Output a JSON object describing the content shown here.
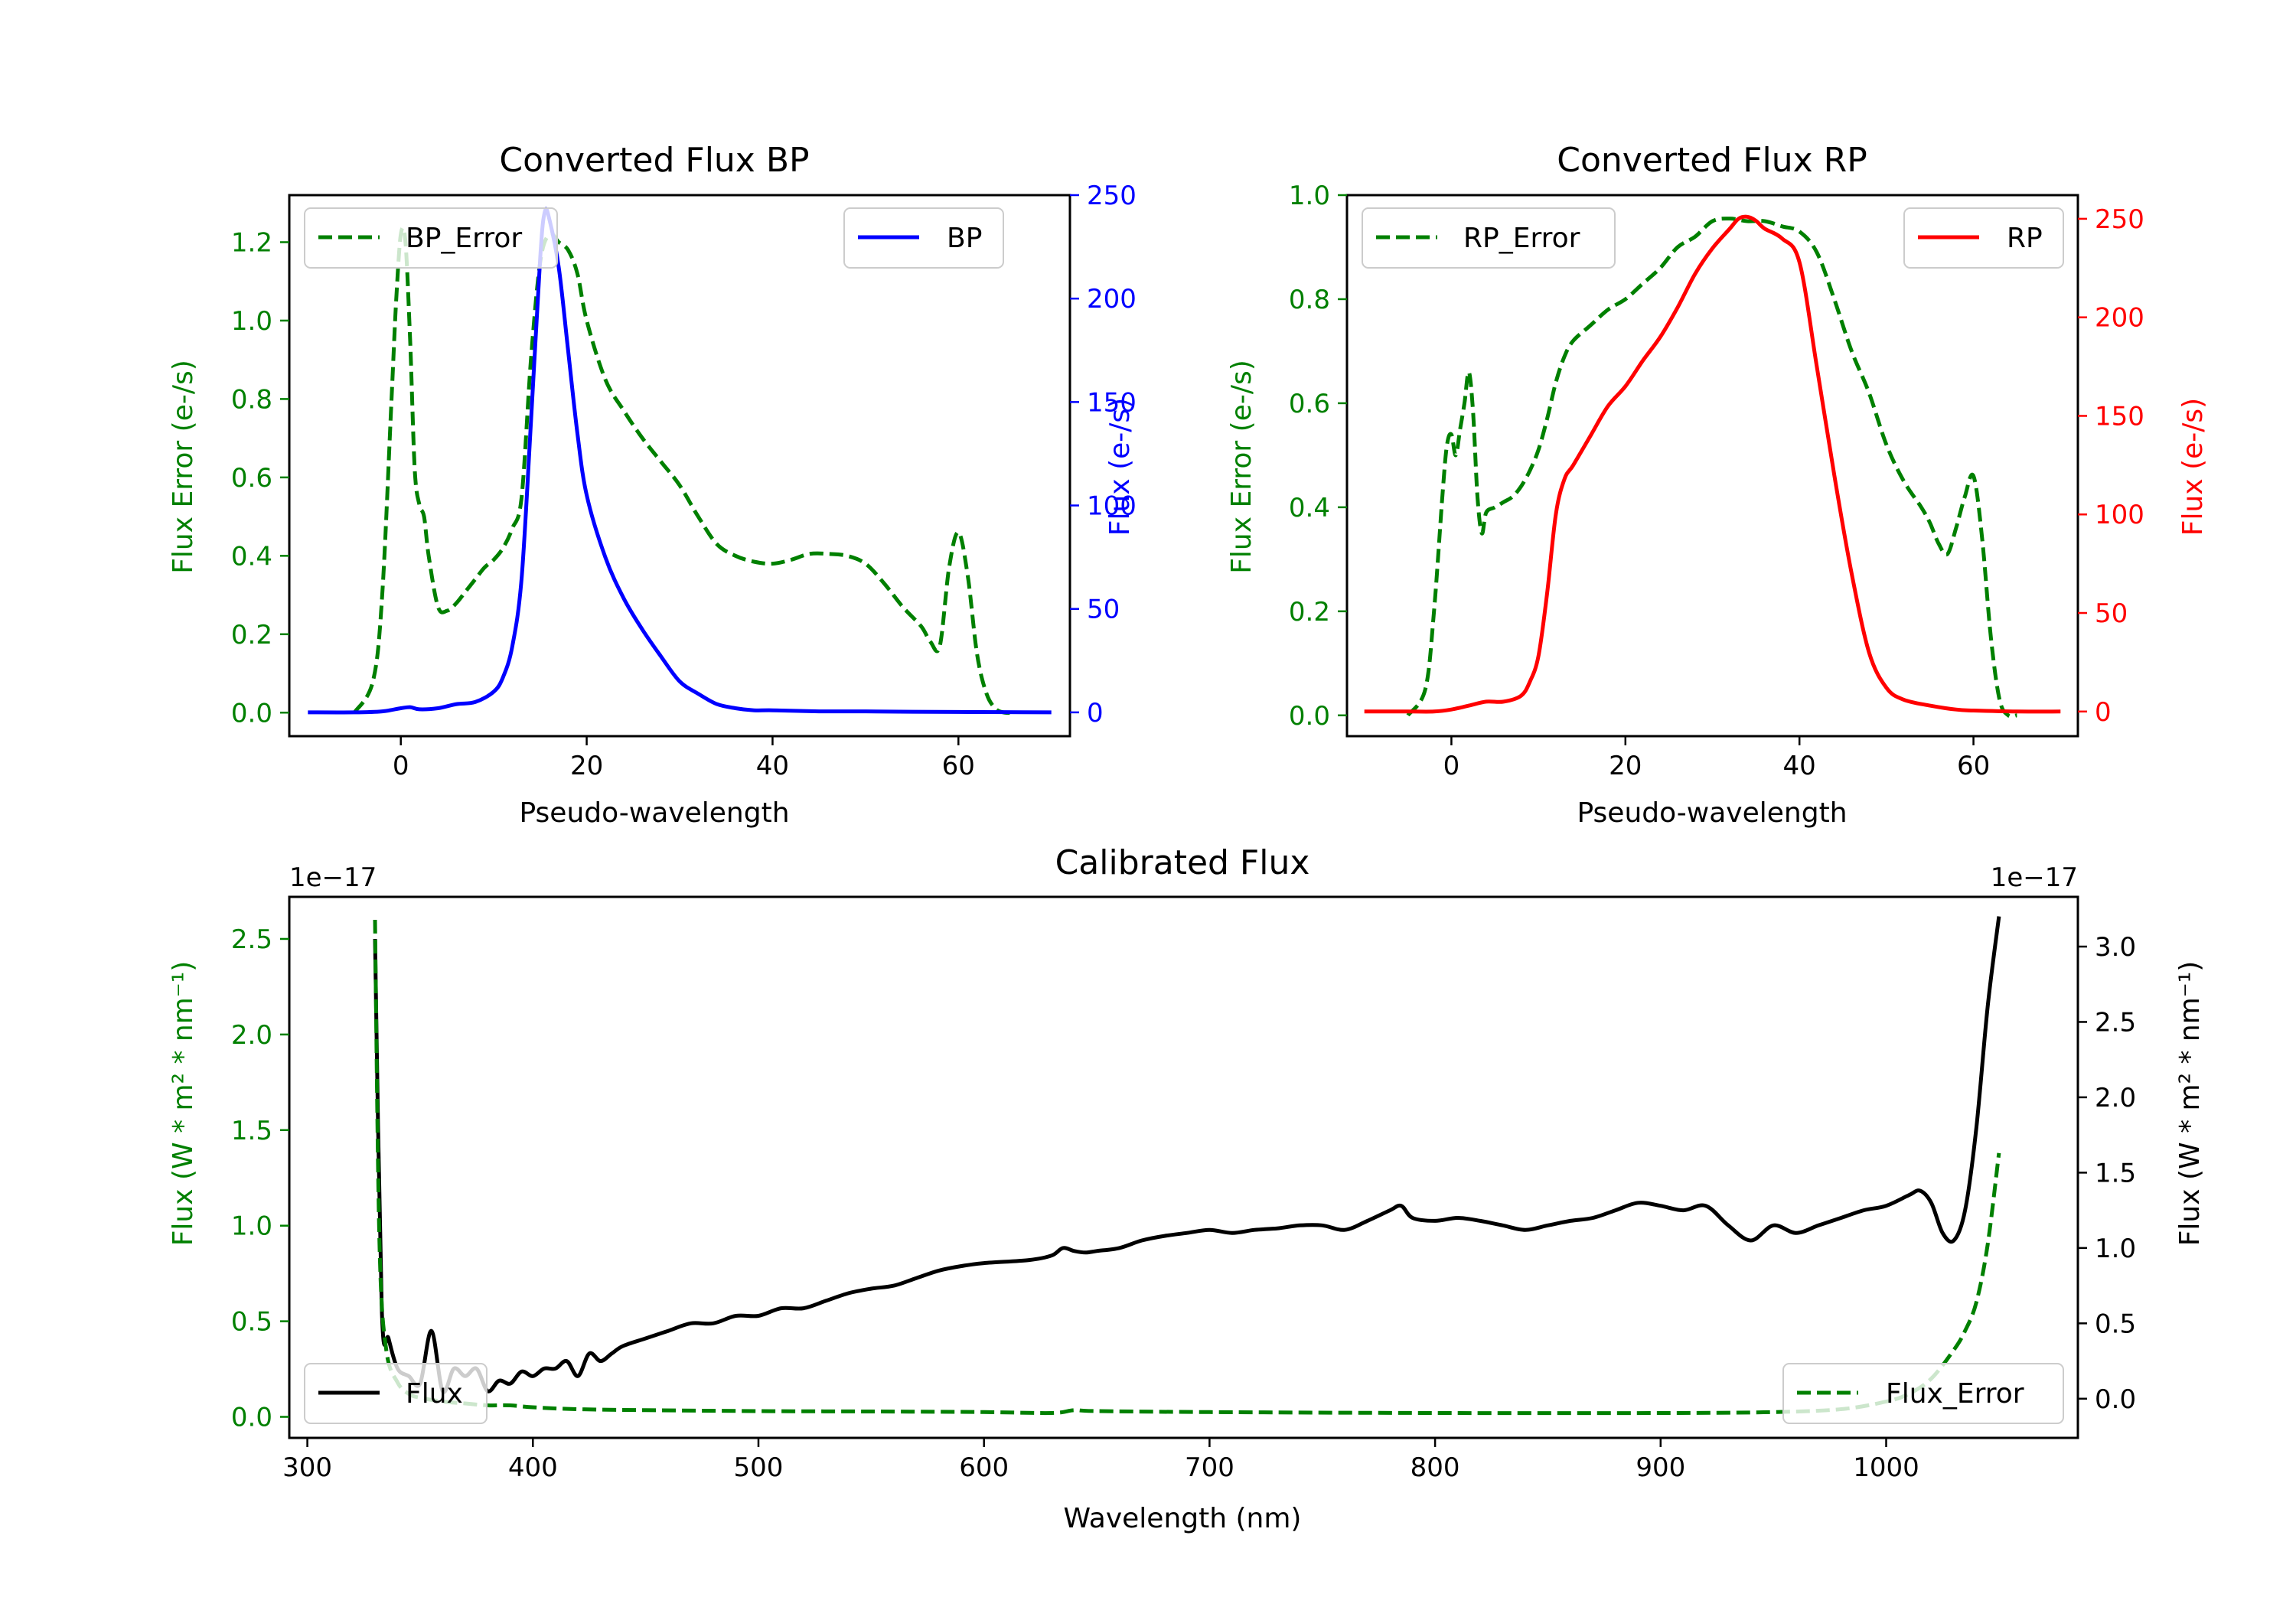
{
  "chart_data": [
    {
      "type": "line",
      "title": "Converted Flux BP",
      "xlabel": "Pseudo-wavelength",
      "ylabel_left": "Flux Error (e-/s)",
      "ylabel_right": "Flux (e-/s)",
      "xlim": [
        -12,
        72
      ],
      "ylim_left": [
        -0.06,
        1.32
      ],
      "ylim_right": [
        -11.5,
        250
      ],
      "x_ticks": [
        "0",
        "20",
        "40",
        "60"
      ],
      "y_ticks_left": [
        "0.0",
        "0.2",
        "0.4",
        "0.6",
        "0.8",
        "1.0",
        "1.2"
      ],
      "y_ticks_right": [
        "0",
        "50",
        "100",
        "150",
        "200",
        "250"
      ],
      "colors": {
        "error": "#008000",
        "flux": "#0000ff",
        "left_axis": "#008000",
        "right_axis": "#0000ff"
      },
      "series": [
        {
          "name": "BP_Error",
          "axis": "left",
          "style": "dashed",
          "legend": "top-left",
          "x": [
            -5,
            -3,
            -2,
            -1,
            -0.5,
            0,
            0.5,
            1,
            1.5,
            2,
            2.5,
            3,
            4,
            5,
            6,
            7,
            8,
            9,
            10,
            11,
            12,
            13,
            14,
            15,
            16,
            17,
            18,
            19,
            20,
            22,
            24,
            26,
            28,
            30,
            32,
            34,
            36,
            38,
            40,
            42,
            44,
            46,
            48,
            50,
            52,
            54,
            56,
            57,
            58,
            59,
            60,
            61,
            62,
            63,
            64,
            65,
            66
          ],
          "values": [
            0.0,
            0.08,
            0.3,
            0.8,
            1.05,
            1.22,
            1.2,
            0.95,
            0.62,
            0.53,
            0.5,
            0.4,
            0.27,
            0.26,
            0.28,
            0.31,
            0.34,
            0.37,
            0.39,
            0.42,
            0.47,
            0.55,
            0.9,
            1.15,
            1.22,
            1.2,
            1.18,
            1.12,
            1.0,
            0.85,
            0.77,
            0.7,
            0.64,
            0.58,
            0.5,
            0.43,
            0.4,
            0.385,
            0.38,
            0.39,
            0.405,
            0.405,
            0.4,
            0.38,
            0.33,
            0.27,
            0.22,
            0.18,
            0.17,
            0.37,
            0.46,
            0.35,
            0.15,
            0.05,
            0.01,
            0.0,
            0.0
          ]
        },
        {
          "name": "BP",
          "axis": "right",
          "style": "solid",
          "legend": "top-right",
          "x": [
            -10,
            -5,
            -2,
            0,
            1,
            2,
            4,
            6,
            8,
            10,
            11,
            12,
            13,
            14,
            15,
            15.5,
            16,
            17,
            18,
            19,
            20,
            22,
            24,
            26,
            28,
            30,
            32,
            34,
            36,
            38,
            40,
            45,
            50,
            55,
            60,
            65,
            70
          ],
          "values": [
            0,
            0,
            0.5,
            2,
            2.5,
            1.5,
            2,
            4,
            5,
            10,
            17,
            32,
            65,
            140,
            220,
            242,
            238,
            215,
            175,
            135,
            105,
            75,
            55,
            40,
            27,
            15,
            9,
            4,
            2,
            1,
            1,
            0.5,
            0.5,
            0.3,
            0.2,
            0.1,
            0
          ]
        }
      ]
    },
    {
      "type": "line",
      "title": "Converted Flux RP",
      "xlabel": "Pseudo-wavelength",
      "ylabel_left": "Flux Error (e-/s)",
      "ylabel_right": "Flux (e-/s)",
      "xlim": [
        -12,
        72
      ],
      "ylim_left": [
        -0.04,
        1.0
      ],
      "ylim_right": [
        -12.5,
        262
      ],
      "x_ticks": [
        "0",
        "20",
        "40",
        "60"
      ],
      "y_ticks_left": [
        "0.0",
        "0.2",
        "0.4",
        "0.6",
        "0.8",
        "1.0"
      ],
      "y_ticks_right": [
        "0",
        "50",
        "100",
        "150",
        "200",
        "250"
      ],
      "colors": {
        "error": "#008000",
        "flux": "#ff0000",
        "left_axis": "#008000",
        "right_axis": "#ff0000"
      },
      "series": [
        {
          "name": "RP_Error",
          "axis": "left",
          "style": "dashed",
          "legend": "top-left",
          "x": [
            -5,
            -3,
            -2,
            -1,
            -0.5,
            0,
            0.5,
            1,
            1.5,
            2,
            2.5,
            3,
            3.5,
            4,
            5,
            6,
            7,
            8,
            9,
            10,
            11,
            12,
            13,
            14,
            16,
            18,
            20,
            22,
            24,
            26,
            28,
            30,
            32,
            34,
            36,
            38,
            40,
            42,
            44,
            46,
            48,
            50,
            52,
            54,
            55,
            56,
            57,
            58,
            59,
            60,
            61,
            62,
            63,
            64,
            65
          ],
          "values": [
            0.0,
            0.05,
            0.2,
            0.43,
            0.52,
            0.54,
            0.5,
            0.55,
            0.6,
            0.66,
            0.58,
            0.42,
            0.35,
            0.39,
            0.4,
            0.41,
            0.42,
            0.44,
            0.47,
            0.51,
            0.57,
            0.64,
            0.69,
            0.72,
            0.75,
            0.78,
            0.8,
            0.83,
            0.86,
            0.9,
            0.92,
            0.95,
            0.955,
            0.95,
            0.95,
            0.94,
            0.93,
            0.89,
            0.8,
            0.7,
            0.62,
            0.52,
            0.45,
            0.4,
            0.37,
            0.33,
            0.31,
            0.36,
            0.42,
            0.46,
            0.34,
            0.15,
            0.03,
            0.0,
            0.0
          ]
        },
        {
          "name": "RP",
          "axis": "right",
          "style": "solid",
          "legend": "top-right",
          "x": [
            -10,
            -5,
            -2,
            0,
            2,
            4,
            6,
            8,
            9,
            10,
            11,
            12,
            13,
            14,
            16,
            18,
            20,
            22,
            24,
            26,
            28,
            30,
            32,
            33,
            34,
            35,
            36,
            38,
            40,
            42,
            44,
            46,
            48,
            50,
            52,
            55,
            58,
            60,
            65,
            70
          ],
          "values": [
            0,
            0,
            0,
            1,
            3,
            5,
            5,
            8,
            15,
            28,
            60,
            100,
            118,
            125,
            140,
            155,
            165,
            178,
            190,
            205,
            222,
            235,
            245,
            250,
            251,
            249,
            245,
            240,
            228,
            175,
            120,
            70,
            30,
            12,
            6,
            3,
            1,
            0.5,
            0,
            0
          ]
        }
      ]
    },
    {
      "type": "line",
      "title": "Calibrated Flux",
      "xlabel": "Wavelength (nm)",
      "ylabel_left": "Flux (W * m² * nm⁻¹)",
      "ylabel_right": "Flux (W * m² * nm⁻¹)",
      "offset_left": "1e−17",
      "offset_right": "1e−17",
      "xlim": [
        292,
        1085
      ],
      "ylim_left": [
        -0.11,
        2.72
      ],
      "ylim_right": [
        -0.26,
        3.33
      ],
      "x_ticks": [
        "300",
        "400",
        "500",
        "600",
        "700",
        "800",
        "900",
        "1000"
      ],
      "y_ticks_left": [
        "0.0",
        "0.5",
        "1.0",
        "1.5",
        "2.0",
        "2.5"
      ],
      "y_ticks_right": [
        "0.0",
        "0.5",
        "1.0",
        "1.5",
        "2.0",
        "2.5",
        "3.0"
      ],
      "colors": {
        "error": "#008000",
        "flux": "#000000",
        "left_axis": "#008000",
        "right_axis": "#000000"
      },
      "series": [
        {
          "name": "Flux",
          "axis": "right",
          "style": "solid",
          "legend": "bottom-left",
          "x": [
            330,
            333,
            336,
            340,
            345,
            350,
            355,
            360,
            365,
            370,
            375,
            380,
            385,
            390,
            395,
            400,
            405,
            410,
            415,
            420,
            425,
            430,
            435,
            440,
            450,
            460,
            470,
            480,
            490,
            500,
            510,
            520,
            530,
            540,
            550,
            560,
            570,
            580,
            590,
            600,
            620,
            630,
            635,
            640,
            645,
            650,
            660,
            670,
            680,
            690,
            700,
            710,
            720,
            730,
            740,
            750,
            760,
            770,
            780,
            785,
            790,
            800,
            810,
            820,
            830,
            840,
            850,
            860,
            870,
            880,
            890,
            900,
            910,
            920,
            930,
            940,
            950,
            960,
            970,
            980,
            990,
            1000,
            1010,
            1015,
            1020,
            1025,
            1030,
            1035,
            1040,
            1045,
            1050
          ],
          "values": [
            3.05,
            0.6,
            0.4,
            0.2,
            0.15,
            0.1,
            0.45,
            0.05,
            0.2,
            0.15,
            0.2,
            0.05,
            0.12,
            0.1,
            0.18,
            0.15,
            0.2,
            0.2,
            0.25,
            0.15,
            0.3,
            0.25,
            0.3,
            0.35,
            0.4,
            0.45,
            0.5,
            0.5,
            0.55,
            0.55,
            0.6,
            0.6,
            0.65,
            0.7,
            0.73,
            0.75,
            0.8,
            0.85,
            0.88,
            0.9,
            0.92,
            0.95,
            1.0,
            0.98,
            0.97,
            0.98,
            1.0,
            1.05,
            1.08,
            1.1,
            1.12,
            1.1,
            1.12,
            1.13,
            1.15,
            1.15,
            1.12,
            1.18,
            1.25,
            1.28,
            1.2,
            1.18,
            1.2,
            1.18,
            1.15,
            1.12,
            1.15,
            1.18,
            1.2,
            1.25,
            1.3,
            1.28,
            1.25,
            1.28,
            1.15,
            1.05,
            1.15,
            1.1,
            1.15,
            1.2,
            1.25,
            1.28,
            1.35,
            1.38,
            1.3,
            1.1,
            1.05,
            1.25,
            1.8,
            2.6,
            3.2
          ]
        },
        {
          "name": "Flux_Error",
          "axis": "left",
          "style": "dashed",
          "legend": "bottom-right",
          "x": [
            330,
            332,
            335,
            340,
            345,
            350,
            360,
            370,
            380,
            390,
            400,
            420,
            450,
            500,
            550,
            600,
            630,
            640,
            650,
            700,
            800,
            900,
            950,
            980,
            1000,
            1010,
            1020,
            1030,
            1035,
            1040,
            1045,
            1050
          ],
          "values": [
            2.6,
            0.9,
            0.35,
            0.18,
            0.12,
            0.1,
            0.08,
            0.07,
            0.06,
            0.06,
            0.05,
            0.04,
            0.035,
            0.03,
            0.028,
            0.025,
            0.02,
            0.035,
            0.03,
            0.025,
            0.02,
            0.02,
            0.025,
            0.04,
            0.08,
            0.12,
            0.2,
            0.35,
            0.45,
            0.6,
            0.9,
            1.38
          ]
        }
      ]
    }
  ]
}
